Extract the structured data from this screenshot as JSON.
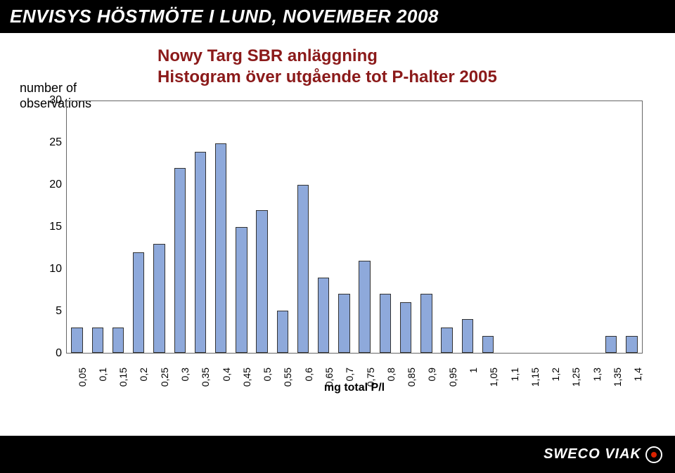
{
  "header": {
    "title": "ENVISYS HÖSTMÖTE I LUND, NOVEMBER 2008"
  },
  "chart": {
    "type": "histogram",
    "title_line1": "Nowy Targ SBR anläggning",
    "title_line2": "Histogram över utgående tot P-halter 2005",
    "title_color": "#8b1a1a",
    "title_fontsize": 24,
    "observations_label_line1": "number of",
    "observations_label_line2": "observations",
    "ylim": [
      0,
      30
    ],
    "ytick_step": 5,
    "yticks": [
      "0",
      "5",
      "10",
      "15",
      "20",
      "25",
      "30"
    ],
    "x_axis_title": "mg total P/l",
    "bar_fill": "#8ea9db",
    "bar_border": "#333333",
    "plot_border": "#666666",
    "background_color": "#ffffff",
    "label_fontsize": 16,
    "tick_fontsize": 14,
    "categories": [
      "0,05",
      "0,1",
      "0,15",
      "0,2",
      "0,25",
      "0,3",
      "0,35",
      "0,4",
      "0,45",
      "0,5",
      "0,55",
      "0,6",
      "0,65",
      "0,7",
      "0,75",
      "0,8",
      "0,85",
      "0,9",
      "0,95",
      "1",
      "1,05",
      "1,1",
      "1,15",
      "1,2",
      "1,25",
      "1,3",
      "1,35",
      "1,4"
    ],
    "values": [
      3,
      3,
      3,
      12,
      13,
      22,
      24,
      25,
      15,
      17,
      5,
      20,
      9,
      7,
      11,
      7,
      6,
      7,
      3,
      4,
      2,
      0,
      0,
      0,
      0,
      0,
      2,
      2
    ]
  },
  "footer": {
    "logo_text": "SWECO VIAK"
  }
}
